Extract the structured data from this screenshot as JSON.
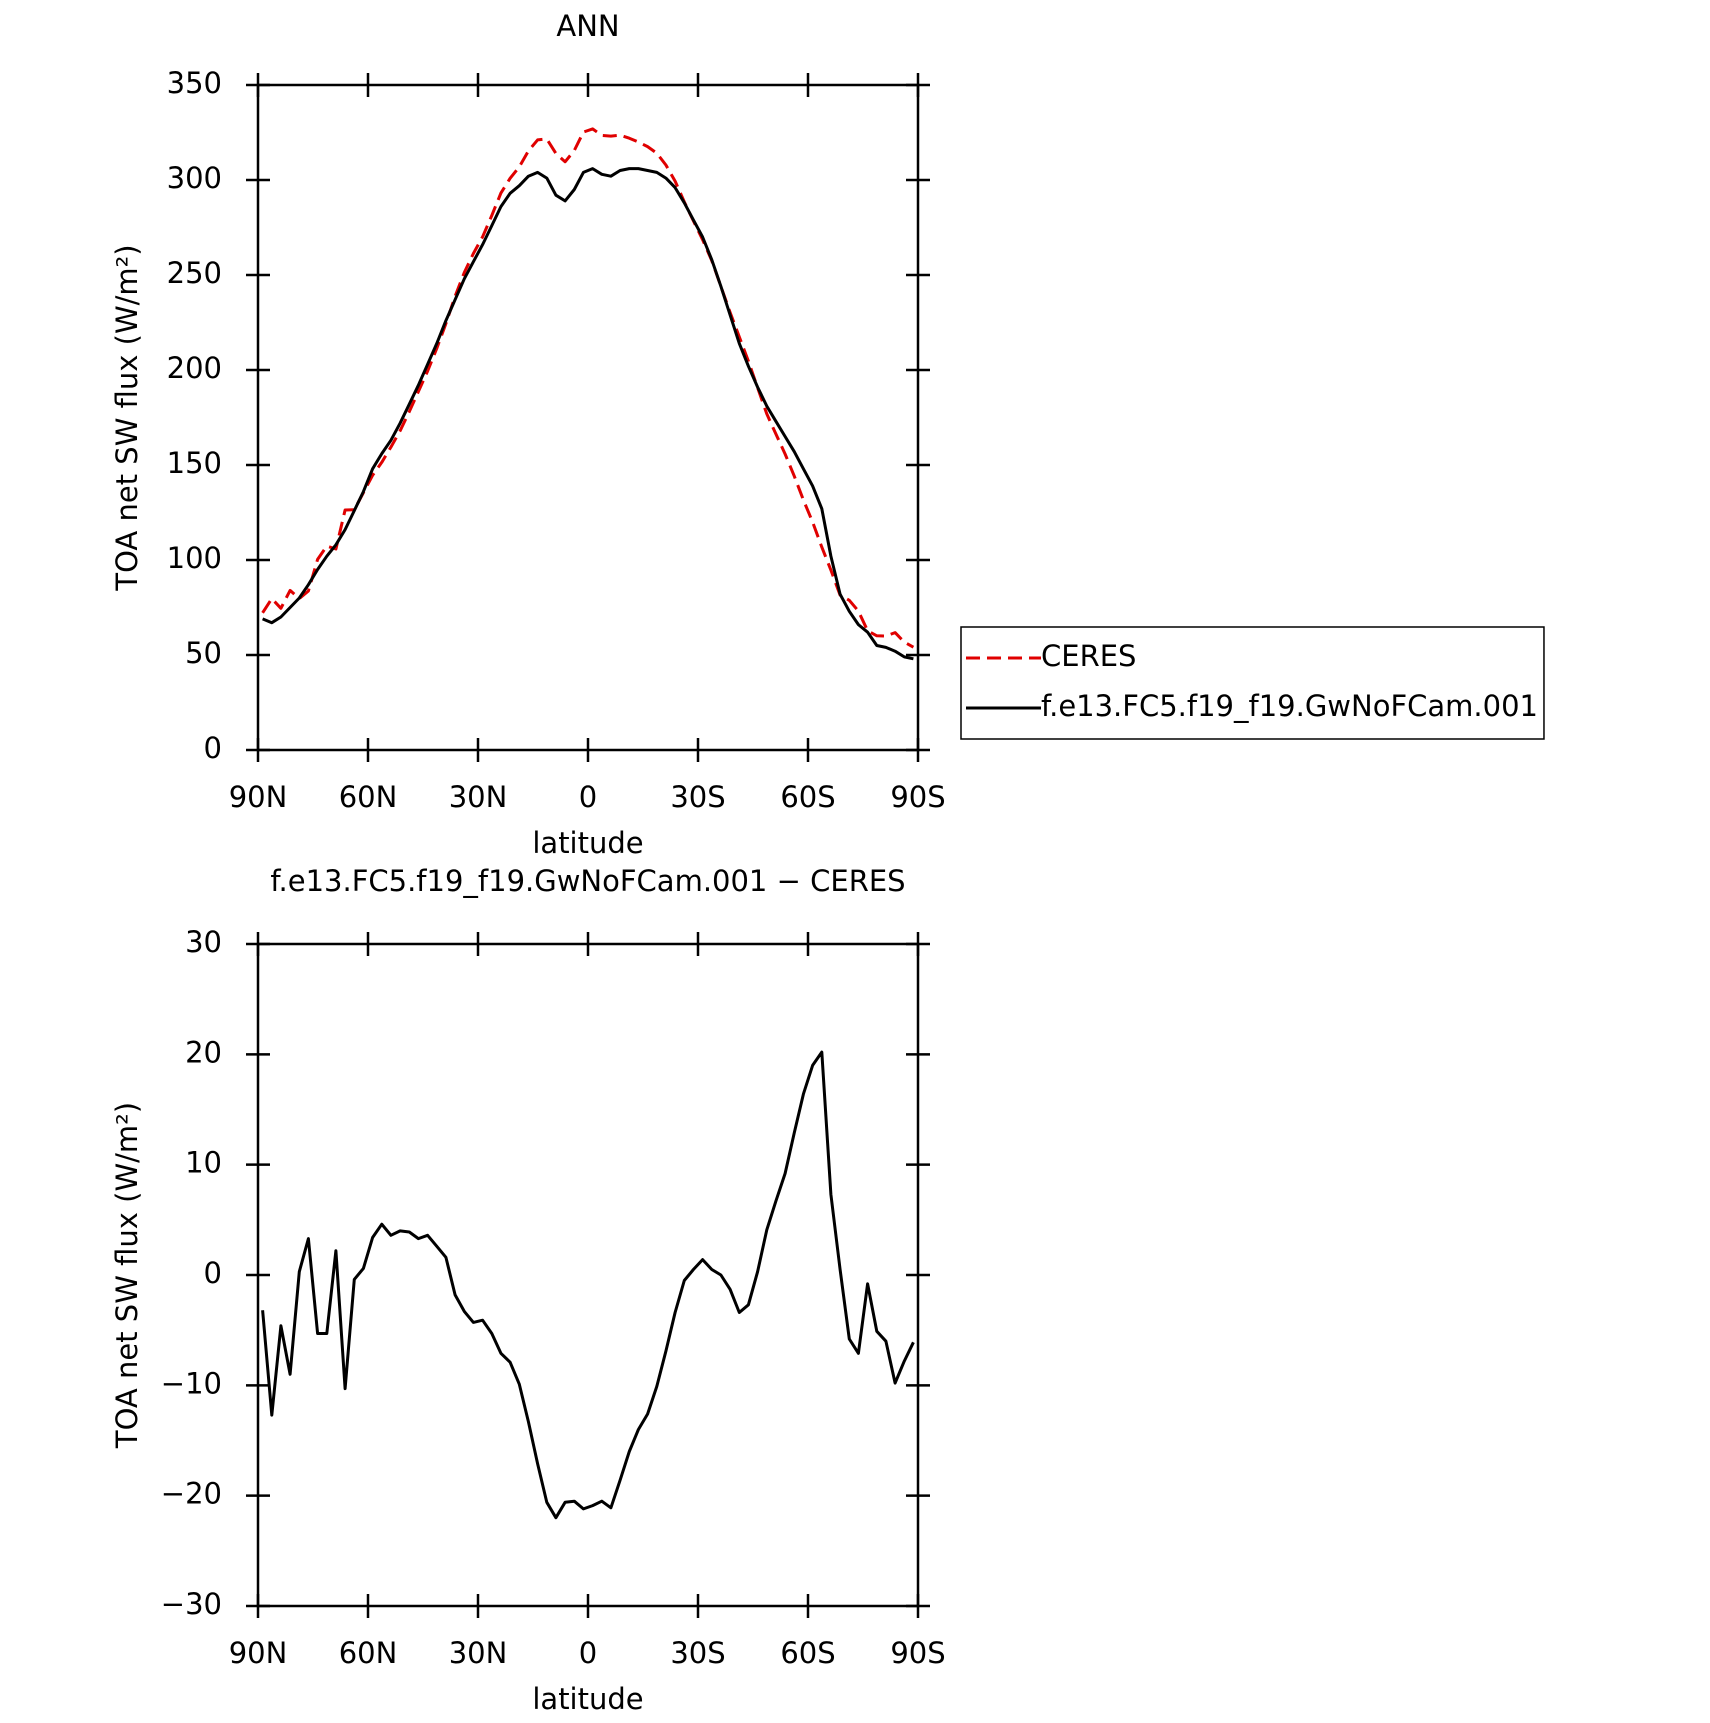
{
  "chart_data": [
    {
      "type": "line",
      "title": "ANN",
      "xlabel": "latitude",
      "ylabel": "TOA net SW flux (W/m²)",
      "x": [
        88.75,
        86.25,
        83.75,
        81.25,
        78.75,
        76.25,
        73.75,
        71.25,
        68.75,
        66.25,
        63.75,
        61.25,
        58.75,
        56.25,
        53.75,
        51.25,
        48.75,
        46.25,
        43.75,
        41.25,
        38.75,
        36.25,
        33.75,
        31.25,
        28.75,
        26.25,
        23.75,
        21.25,
        18.75,
        16.25,
        13.75,
        11.25,
        8.75,
        6.25,
        3.75,
        1.25,
        -1.25,
        -3.75,
        -6.25,
        -8.75,
        -11.25,
        -13.75,
        -16.25,
        -18.75,
        -21.25,
        -23.75,
        -26.25,
        -28.75,
        -31.25,
        -33.75,
        -36.25,
        -38.75,
        -41.25,
        -43.75,
        -46.25,
        -48.75,
        -51.25,
        -53.75,
        -56.25,
        -58.75,
        -61.25,
        -63.75,
        -66.25,
        -68.75,
        -71.25,
        -73.75,
        -76.25,
        -78.75,
        -81.25,
        -83.75,
        -86.25,
        -88.75
      ],
      "xlim": [
        90,
        -90
      ],
      "xticks": [
        {
          "value": 90,
          "label": "90N"
        },
        {
          "value": 60,
          "label": "60N"
        },
        {
          "value": 30,
          "label": "30N"
        },
        0,
        {
          "value": -30,
          "label": "30S"
        },
        {
          "value": -60,
          "label": "60S"
        },
        {
          "value": -90,
          "label": "90S"
        }
      ],
      "ylim": [
        0,
        350
      ],
      "yticks": [
        0,
        50,
        100,
        150,
        200,
        250,
        300,
        350
      ],
      "legend": "outside-right",
      "series": [
        {
          "name": "CERES",
          "color": "#e00000",
          "dash": true,
          "values": [
            72.2,
            79.7,
            74.6,
            84,
            79.7,
            83.7,
            100.3,
            107.3,
            105.8,
            126.3,
            126.4,
            135.4,
            144.6,
            151.4,
            159.4,
            168,
            178.1,
            188.7,
            199.4,
            211.4,
            224.4,
            238.8,
            251.3,
            261.3,
            270.1,
            281.3,
            293.1,
            300.9,
            306.9,
            315.3,
            321.1,
            321.6,
            314,
            309.6,
            315.5,
            325.2,
            326.9,
            323.5,
            323.1,
            323.6,
            322,
            320,
            317.6,
            314.1,
            307.9,
            299.4,
            288.5,
            278.5,
            268.6,
            257.5,
            244,
            230.3,
            217.4,
            204.7,
            190.7,
            176.9,
            166.3,
            155.8,
            144.1,
            131.6,
            120,
            106.8,
            94.7,
            81.5,
            78.8,
            73.1,
            62.8,
            60.1,
            60,
            61.8,
            56.8,
            54.1
          ]
        },
        {
          "name": "f.e13.FC5.f19_f19.GwNoFCam.001",
          "color": "#000000",
          "dash": false,
          "values": [
            69,
            67,
            70,
            75,
            80,
            87,
            95,
            102,
            108,
            116,
            126,
            136,
            148,
            156,
            163,
            172,
            182,
            192,
            203,
            214,
            226,
            237,
            248,
            257,
            266,
            276,
            286,
            293,
            297,
            302,
            304,
            301,
            292,
            289,
            295,
            304,
            306,
            303,
            302,
            305,
            306,
            306,
            305,
            304,
            301,
            296,
            288,
            279,
            270,
            258,
            244,
            229,
            214,
            202,
            191,
            181,
            173,
            165,
            157,
            148,
            139,
            127,
            102,
            82,
            73,
            66,
            62,
            55,
            54,
            52,
            49,
            48
          ]
        }
      ]
    },
    {
      "type": "line",
      "title": "f.e13.FC5.f19_f19.GwNoFCam.001 − CERES",
      "xlabel": "latitude",
      "ylabel": "TOA net SW flux (W/m²)",
      "x": [
        88.75,
        86.25,
        83.75,
        81.25,
        78.75,
        76.25,
        73.75,
        71.25,
        68.75,
        66.25,
        63.75,
        61.25,
        58.75,
        56.25,
        53.75,
        51.25,
        48.75,
        46.25,
        43.75,
        41.25,
        38.75,
        36.25,
        33.75,
        31.25,
        28.75,
        26.25,
        23.75,
        21.25,
        18.75,
        16.25,
        13.75,
        11.25,
        8.75,
        6.25,
        3.75,
        1.25,
        -1.25,
        -3.75,
        -6.25,
        -8.75,
        -11.25,
        -13.75,
        -16.25,
        -18.75,
        -21.25,
        -23.75,
        -26.25,
        -28.75,
        -31.25,
        -33.75,
        -36.25,
        -38.75,
        -41.25,
        -43.75,
        -46.25,
        -48.75,
        -51.25,
        -53.75,
        -56.25,
        -58.75,
        -61.25,
        -63.75,
        -66.25,
        -68.75,
        -71.25,
        -73.75,
        -76.25,
        -78.75,
        -81.25,
        -83.75,
        -86.25,
        -88.75
      ],
      "xlim": [
        90,
        -90
      ],
      "xticks": [
        {
          "value": 90,
          "label": "90N"
        },
        {
          "value": 60,
          "label": "60N"
        },
        {
          "value": 30,
          "label": "30N"
        },
        0,
        {
          "value": -30,
          "label": "30S"
        },
        {
          "value": -60,
          "label": "60S"
        },
        {
          "value": -90,
          "label": "90S"
        }
      ],
      "ylim": [
        -30,
        30
      ],
      "yticks": [
        {
          "value": -30,
          "label": "−30"
        },
        {
          "value": -20,
          "label": "−20"
        },
        {
          "value": -10,
          "label": "−10"
        },
        0,
        10,
        20,
        30
      ],
      "series": [
        {
          "color": "#000000",
          "dash": false,
          "values": [
            -3.2,
            -12.7,
            -4.6,
            -9,
            0.3,
            3.3,
            -5.3,
            -5.3,
            2.2,
            -10.3,
            -0.4,
            0.6,
            3.4,
            4.6,
            3.6,
            4,
            3.9,
            3.3,
            3.6,
            2.6,
            1.6,
            -1.8,
            -3.3,
            -4.3,
            -4.1,
            -5.3,
            -7.1,
            -7.9,
            -9.9,
            -13.3,
            -17.1,
            -20.6,
            -22,
            -20.6,
            -20.5,
            -21.2,
            -20.9,
            -20.5,
            -21.1,
            -18.6,
            -16,
            -14,
            -12.6,
            -10.1,
            -6.9,
            -3.4,
            -0.5,
            0.5,
            1.4,
            0.5,
            0,
            -1.3,
            -3.4,
            -2.7,
            0.3,
            4.1,
            6.7,
            9.2,
            12.9,
            16.4,
            19,
            20.2,
            7.3,
            0.5,
            -5.8,
            -7.1,
            -0.8,
            -5.1,
            -6,
            -9.8,
            -7.8,
            -6.1
          ]
        }
      ]
    }
  ]
}
